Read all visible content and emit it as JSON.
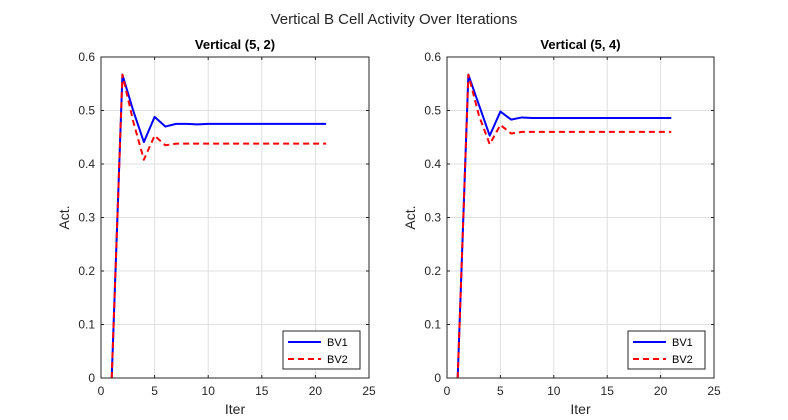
{
  "figure": {
    "title": "Vertical B Cell Activity Over Iterations"
  },
  "chart_data": [
    {
      "type": "line",
      "title": "Vertical (5, 2)",
      "xlabel": "Iter",
      "ylabel": "Act.",
      "xlim": [
        0,
        25
      ],
      "ylim": [
        0,
        0.6
      ],
      "xticks": [
        0,
        5,
        10,
        15,
        20,
        25
      ],
      "yticks": [
        0,
        0.1,
        0.2,
        0.3,
        0.4,
        0.5,
        0.6
      ],
      "grid": true,
      "legend": "bottom-right",
      "x": [
        1,
        2,
        3,
        4,
        5,
        6,
        7,
        8,
        9,
        10,
        11,
        12,
        13,
        14,
        15,
        16,
        17,
        18,
        19,
        20,
        21
      ],
      "series": [
        {
          "name": "BV1",
          "color": "#0000ff",
          "style": "solid",
          "values": [
            0,
            0.567,
            0.5,
            0.441,
            0.488,
            0.47,
            0.475,
            0.475,
            0.474,
            0.475,
            0.475,
            0.475,
            0.475,
            0.475,
            0.475,
            0.475,
            0.475,
            0.475,
            0.475,
            0.475,
            0.475
          ]
        },
        {
          "name": "BV2",
          "color": "#ff0000",
          "style": "dashed",
          "values": [
            0,
            0.567,
            0.48,
            0.408,
            0.453,
            0.435,
            0.438,
            0.438,
            0.438,
            0.438,
            0.438,
            0.438,
            0.438,
            0.438,
            0.438,
            0.438,
            0.438,
            0.438,
            0.438,
            0.438,
            0.438
          ]
        }
      ]
    },
    {
      "type": "line",
      "title": "Vertical (5, 4)",
      "xlabel": "Iter",
      "ylabel": "Act.",
      "xlim": [
        0,
        25
      ],
      "ylim": [
        0,
        0.6
      ],
      "xticks": [
        0,
        5,
        10,
        15,
        20,
        25
      ],
      "yticks": [
        0,
        0.1,
        0.2,
        0.3,
        0.4,
        0.5,
        0.6
      ],
      "grid": true,
      "legend": "bottom-right",
      "x": [
        1,
        2,
        3,
        4,
        5,
        6,
        7,
        8,
        9,
        10,
        11,
        12,
        13,
        14,
        15,
        16,
        17,
        18,
        19,
        20,
        21
      ],
      "series": [
        {
          "name": "BV1",
          "color": "#0000ff",
          "style": "solid",
          "values": [
            0,
            0.567,
            0.51,
            0.453,
            0.498,
            0.483,
            0.487,
            0.486,
            0.486,
            0.486,
            0.486,
            0.486,
            0.486,
            0.486,
            0.486,
            0.486,
            0.486,
            0.486,
            0.486,
            0.486,
            0.486
          ]
        },
        {
          "name": "BV2",
          "color": "#ff0000",
          "style": "dashed",
          "values": [
            0,
            0.567,
            0.49,
            0.437,
            0.473,
            0.457,
            0.46,
            0.46,
            0.46,
            0.46,
            0.46,
            0.46,
            0.46,
            0.46,
            0.46,
            0.46,
            0.46,
            0.46,
            0.46,
            0.46,
            0.46
          ]
        }
      ]
    }
  ]
}
